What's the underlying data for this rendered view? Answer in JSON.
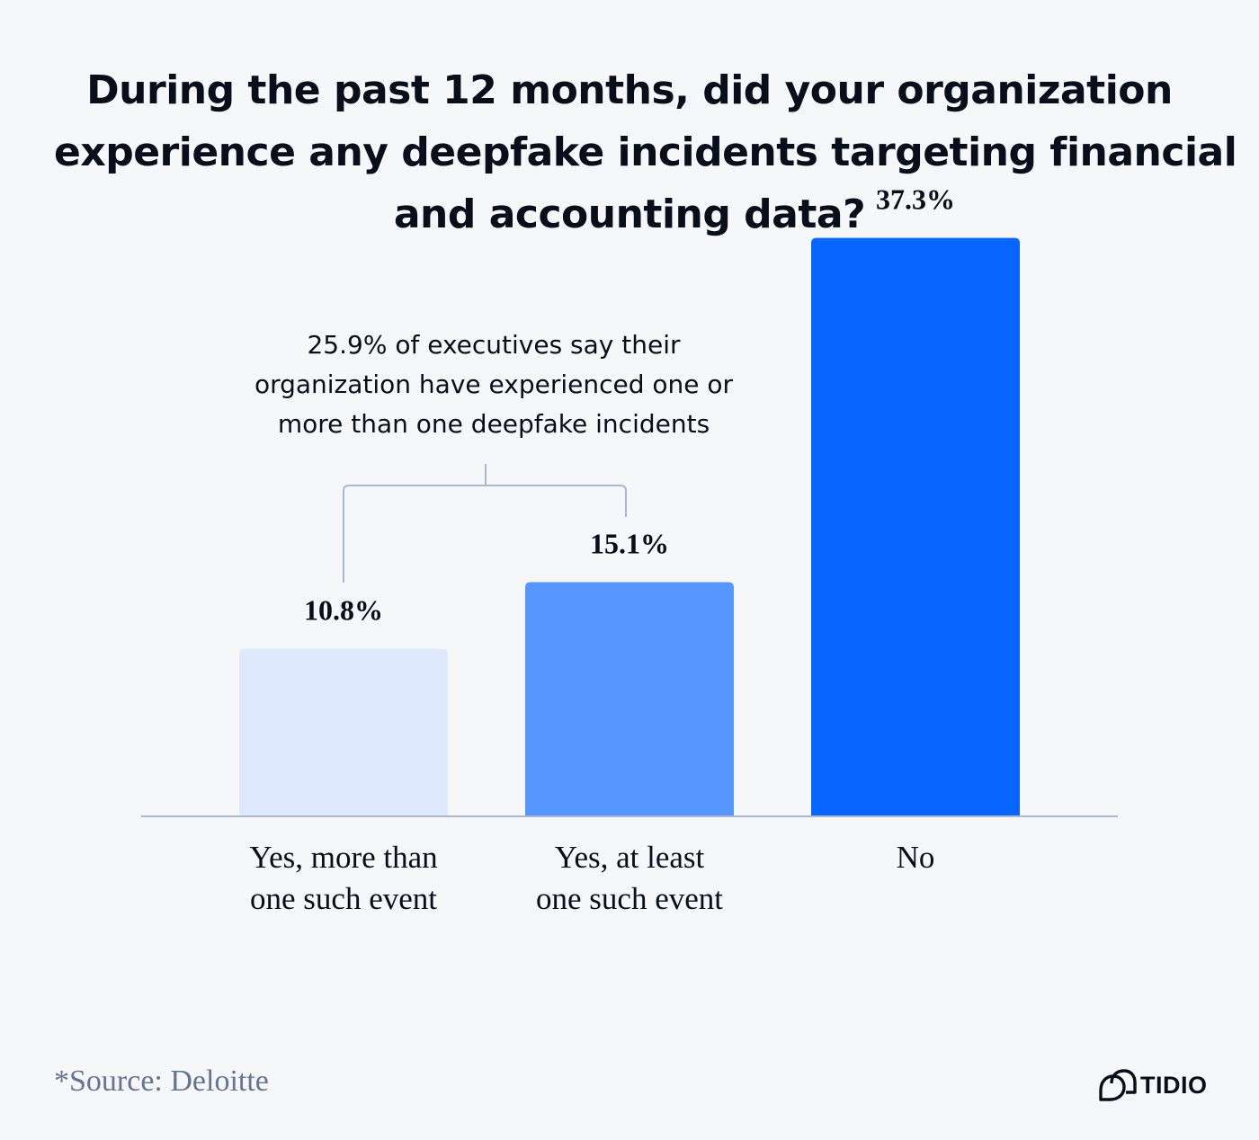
{
  "title_lines": [
    "During the past 12 months, did your organization",
    "experience any deepfake incidents targeting financial",
    "and accounting data?"
  ],
  "chart_data": {
    "type": "bar",
    "categories": [
      [
        "Yes, more than",
        "one such event"
      ],
      [
        "Yes, at least",
        "one such event"
      ],
      [
        "No"
      ]
    ],
    "values": [
      10.8,
      15.1,
      37.3
    ],
    "value_labels": [
      "10.8%",
      "15.1%",
      "37.3%"
    ],
    "bar_colors": [
      "#dfe9fd",
      "#5896ff",
      "#0766ff"
    ],
    "ylim": [
      0,
      40
    ],
    "grid": false,
    "legend": "none",
    "annotation": {
      "lines": [
        "25.9% of executives say their",
        "organization have experienced one or",
        "more than one deepfake incidents"
      ],
      "spans_categories": [
        0,
        1
      ]
    }
  },
  "footer": {
    "source": "*Source: Deloitte",
    "brand": "TIDIO"
  },
  "colors": {
    "background": "#f6f7f9",
    "text": "#080f1a",
    "muted": "#647491",
    "axis": "#a9b7cf"
  }
}
